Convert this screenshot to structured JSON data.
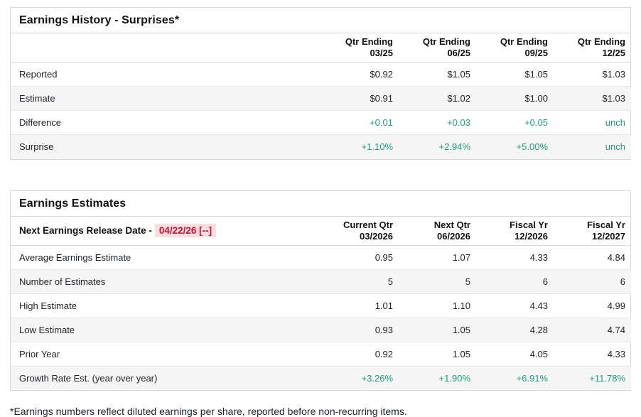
{
  "colors": {
    "positive_green": "#1f9d7a",
    "alert_red": "#c8102e",
    "alert_red_bg": "#fcdee1",
    "stripe_gray": "#f5f5f5",
    "border_gray": "#d8d8d8"
  },
  "earnings_history": {
    "title": "Earnings History - Surprises*",
    "columns": [
      {
        "line1": "Qtr Ending",
        "line2": "03/25"
      },
      {
        "line1": "Qtr Ending",
        "line2": "06/25"
      },
      {
        "line1": "Qtr Ending",
        "line2": "09/25"
      },
      {
        "line1": "Qtr Ending",
        "line2": "12/25"
      }
    ],
    "rows": [
      {
        "label": "Reported",
        "values": [
          "$0.92",
          "$1.05",
          "$1.05",
          "$1.03"
        ]
      },
      {
        "label": "Estimate",
        "values": [
          "$0.91",
          "$1.02",
          "$1.00",
          "$1.03"
        ]
      },
      {
        "label": "Difference",
        "values": [
          "+0.01",
          "+0.03",
          "+0.05",
          "unch"
        ]
      },
      {
        "label": "Surprise",
        "values": [
          "+1.10%",
          "+2.94%",
          "+5.00%",
          "unch"
        ]
      }
    ]
  },
  "earnings_estimates": {
    "title": "Earnings Estimates",
    "release_date_label": "Next Earnings Release Date -",
    "release_date_value": "04/22/26 [--]",
    "columns": [
      {
        "line1": "Current Qtr",
        "line2": "03/2026"
      },
      {
        "line1": "Next Qtr",
        "line2": "06/2026"
      },
      {
        "line1": "Fiscal Yr",
        "line2": "12/2026"
      },
      {
        "line1": "Fiscal Yr",
        "line2": "12/2027"
      }
    ],
    "rows": [
      {
        "label": "Average Earnings Estimate",
        "values": [
          "0.95",
          "1.07",
          "4.33",
          "4.84"
        ]
      },
      {
        "label": "Number of Estimates",
        "values": [
          "5",
          "5",
          "6",
          "6"
        ]
      },
      {
        "label": "High Estimate",
        "values": [
          "1.01",
          "1.10",
          "4.43",
          "4.99"
        ]
      },
      {
        "label": "Low Estimate",
        "values": [
          "0.93",
          "1.05",
          "4.28",
          "4.74"
        ]
      },
      {
        "label": "Prior Year",
        "values": [
          "0.92",
          "1.05",
          "4.05",
          "4.33"
        ]
      },
      {
        "label": "Growth Rate Est. (year over year)",
        "values": [
          "+3.26%",
          "+1.90%",
          "+6.91%",
          "+11.78%"
        ]
      }
    ]
  },
  "footnote": "*Earnings numbers reflect diluted earnings per share, reported before non-recurring items."
}
